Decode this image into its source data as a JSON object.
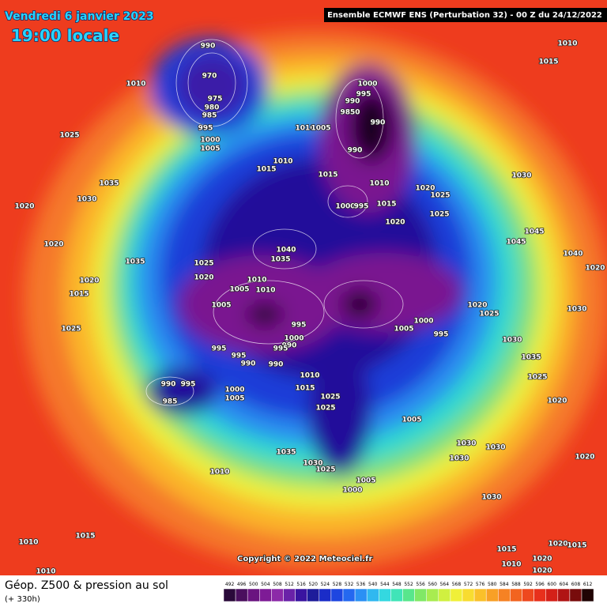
{
  "header": {
    "date": "Vendredi 6 janvier 2023",
    "time": "19:00 locale",
    "run": "Ensemble ECMWF ENS  (Perturbation 32)  - 00 Z du 24/12/2022"
  },
  "map": {
    "pressure_labels": [
      990,
      970,
      975,
      980,
      985,
      995,
      1000,
      1005,
      1010,
      1025,
      1000,
      995,
      990,
      9850,
      990,
      990,
      1010,
      1005,
      1015,
      1010,
      1015,
      1010,
      1020,
      1025,
      1025,
      1000,
      995,
      1015,
      1020,
      1030,
      1035,
      1030,
      1020,
      1020,
      1035,
      1025,
      1020,
      1040,
      1035,
      1010,
      1005,
      1010,
      1005,
      995,
      1000,
      990,
      995,
      995,
      995,
      990,
      990,
      1010,
      1015,
      990,
      995,
      985,
      1000,
      1005,
      1025,
      1025,
      1005,
      1035,
      1030,
      1025,
      1005,
      1000,
      1030,
      1030,
      1030,
      1030,
      1010,
      1015,
      1010,
      1010,
      1000,
      995,
      1005,
      1025,
      1020,
      1030,
      1020,
      1020,
      1020,
      1015,
      1010,
      1025,
      1015,
      1020,
      1045,
      1045,
      1040,
      1025,
      1015,
      1020,
      1015,
      1020,
      1010,
      1020,
      1035,
      1030
    ]
  },
  "copyright": "Copyright © 2022 Meteociel.fr",
  "footer": {
    "title": "Géop. Z500 & pression au sol",
    "lead": "(+ 330h)"
  },
  "legend": {
    "levels": [
      492,
      496,
      500,
      504,
      508,
      512,
      516,
      520,
      524,
      528,
      532,
      536,
      540,
      544,
      548,
      552,
      556,
      560,
      564,
      568,
      572,
      576,
      580,
      584,
      588,
      592,
      596,
      600,
      604,
      608,
      612
    ],
    "colors": [
      "#2a0a3a",
      "#4a0f5e",
      "#6a1480",
      "#7e1b96",
      "#8c2aa8",
      "#6a22a8",
      "#3a14a0",
      "#1e1c9a",
      "#1a2cc8",
      "#1e46e0",
      "#2468f0",
      "#2a90f4",
      "#30b8f0",
      "#34d8e0",
      "#40e4b8",
      "#58e68c",
      "#80e866",
      "#a8ec50",
      "#d0f040",
      "#f0f038",
      "#f8dc30",
      "#fac02a",
      "#f8a026",
      "#f68224",
      "#f26420",
      "#ee481e",
      "#e8301c",
      "#d42018",
      "#b01414",
      "#780c0c",
      "#200404"
    ]
  }
}
